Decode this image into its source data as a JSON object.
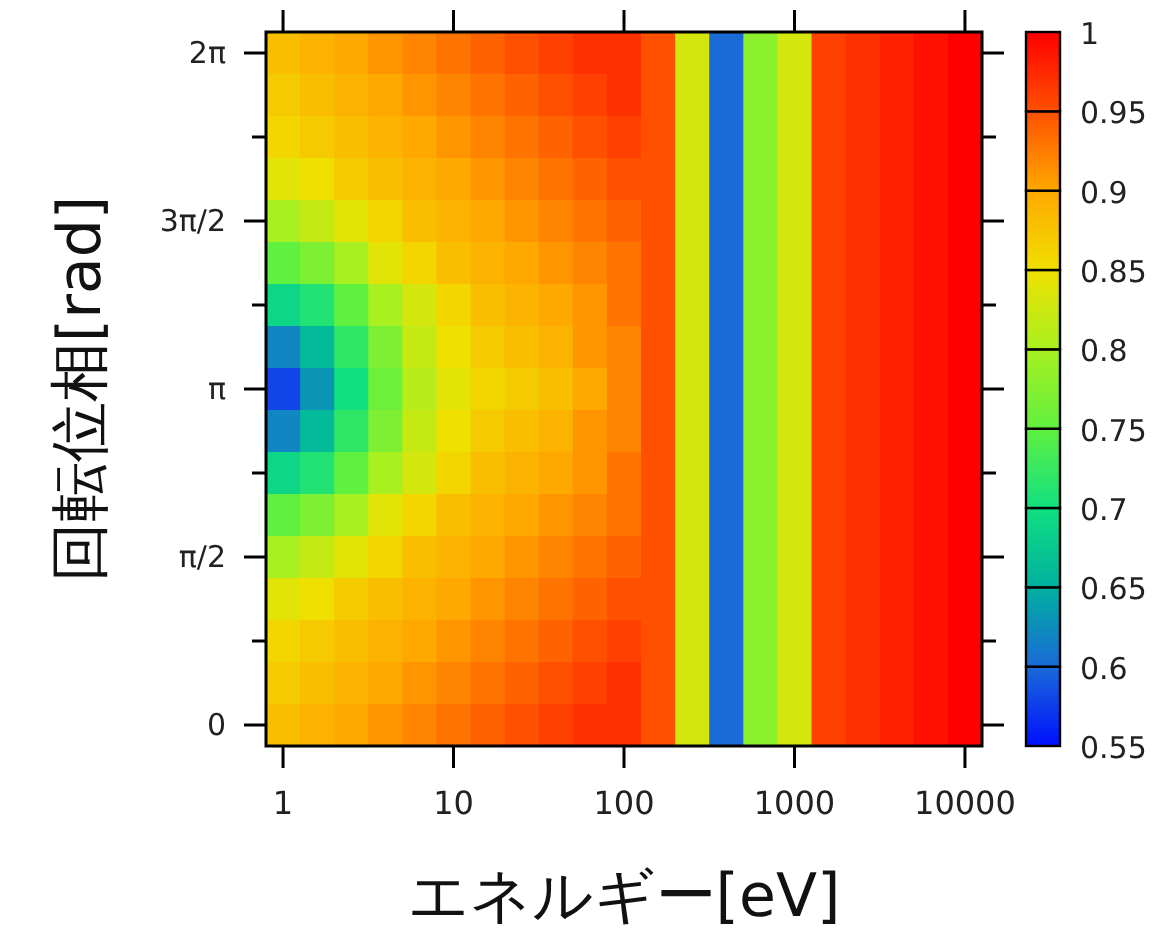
{
  "chart_data": {
    "type": "heatmap",
    "xlabel": "エネルギー[eV]",
    "ylabel": "回転位相[rad]",
    "categories": [
      "1",
      null,
      null,
      null,
      null,
      "10",
      null,
      null,
      null,
      null,
      "100",
      null,
      null,
      null,
      null,
      "1000",
      null,
      null,
      null,
      null,
      "10000"
    ],
    "y_categories": [
      "2π",
      null,
      null,
      null,
      "3π/2",
      null,
      null,
      null,
      "π",
      null,
      null,
      null,
      "π/2",
      null,
      null,
      null,
      "0"
    ],
    "clim": [
      0.55,
      1
    ],
    "cticks": [
      0.55,
      0.6,
      0.65,
      0.7,
      0.75,
      0.8,
      0.85,
      0.9,
      0.95,
      1
    ],
    "cells": [
      [
        0.88,
        0.89,
        0.9,
        0.91,
        0.92,
        0.93,
        0.94,
        0.95,
        0.96,
        0.97,
        0.97,
        0.95,
        0.83,
        0.6,
        0.78,
        0.83,
        0.96,
        0.97,
        0.98,
        0.99,
        1
      ],
      [
        0.87,
        0.88,
        0.89,
        0.9,
        0.91,
        0.92,
        0.93,
        0.94,
        0.95,
        0.96,
        0.97,
        0.95,
        0.83,
        0.6,
        0.78,
        0.83,
        0.96,
        0.97,
        0.98,
        0.99,
        1
      ],
      [
        0.86,
        0.87,
        0.88,
        0.89,
        0.9,
        0.91,
        0.92,
        0.93,
        0.94,
        0.95,
        0.96,
        0.95,
        0.83,
        0.6,
        0.78,
        0.83,
        0.96,
        0.97,
        0.98,
        0.99,
        1
      ],
      [
        0.84,
        0.85,
        0.87,
        0.88,
        0.89,
        0.9,
        0.91,
        0.92,
        0.93,
        0.94,
        0.95,
        0.95,
        0.83,
        0.6,
        0.78,
        0.83,
        0.96,
        0.97,
        0.98,
        0.99,
        1
      ],
      [
        0.8,
        0.82,
        0.84,
        0.86,
        0.88,
        0.89,
        0.9,
        0.91,
        0.92,
        0.93,
        0.94,
        0.95,
        0.83,
        0.6,
        0.78,
        0.83,
        0.96,
        0.97,
        0.98,
        0.99,
        1
      ],
      [
        0.75,
        0.77,
        0.8,
        0.84,
        0.86,
        0.88,
        0.89,
        0.9,
        0.91,
        0.92,
        0.93,
        0.95,
        0.83,
        0.6,
        0.78,
        0.83,
        0.96,
        0.97,
        0.98,
        0.99,
        1
      ],
      [
        0.69,
        0.71,
        0.75,
        0.8,
        0.83,
        0.86,
        0.88,
        0.89,
        0.9,
        0.91,
        0.93,
        0.95,
        0.83,
        0.6,
        0.78,
        0.83,
        0.96,
        0.97,
        0.98,
        0.99,
        1
      ],
      [
        0.62,
        0.66,
        0.72,
        0.77,
        0.82,
        0.85,
        0.87,
        0.88,
        0.89,
        0.91,
        0.92,
        0.95,
        0.83,
        0.6,
        0.78,
        0.83,
        0.96,
        0.97,
        0.98,
        0.99,
        1
      ],
      [
        0.58,
        0.63,
        0.7,
        0.76,
        0.81,
        0.84,
        0.86,
        0.87,
        0.88,
        0.9,
        0.92,
        0.95,
        0.83,
        0.6,
        0.78,
        0.83,
        0.96,
        0.97,
        0.98,
        0.99,
        1
      ],
      [
        0.62,
        0.66,
        0.72,
        0.77,
        0.82,
        0.85,
        0.87,
        0.88,
        0.89,
        0.91,
        0.92,
        0.95,
        0.83,
        0.6,
        0.78,
        0.83,
        0.96,
        0.97,
        0.98,
        0.99,
        1
      ],
      [
        0.69,
        0.71,
        0.75,
        0.8,
        0.83,
        0.86,
        0.88,
        0.89,
        0.9,
        0.91,
        0.93,
        0.95,
        0.83,
        0.6,
        0.78,
        0.83,
        0.96,
        0.97,
        0.98,
        0.99,
        1
      ],
      [
        0.75,
        0.77,
        0.8,
        0.84,
        0.86,
        0.88,
        0.89,
        0.9,
        0.91,
        0.92,
        0.93,
        0.95,
        0.83,
        0.6,
        0.78,
        0.83,
        0.96,
        0.97,
        0.98,
        0.99,
        1
      ],
      [
        0.8,
        0.82,
        0.84,
        0.86,
        0.88,
        0.89,
        0.9,
        0.91,
        0.92,
        0.93,
        0.94,
        0.95,
        0.83,
        0.6,
        0.78,
        0.83,
        0.96,
        0.97,
        0.98,
        0.99,
        1
      ],
      [
        0.84,
        0.85,
        0.87,
        0.88,
        0.89,
        0.9,
        0.91,
        0.92,
        0.93,
        0.94,
        0.95,
        0.95,
        0.83,
        0.6,
        0.78,
        0.83,
        0.96,
        0.97,
        0.98,
        0.99,
        1
      ],
      [
        0.86,
        0.87,
        0.88,
        0.89,
        0.9,
        0.91,
        0.92,
        0.93,
        0.94,
        0.95,
        0.96,
        0.95,
        0.83,
        0.6,
        0.78,
        0.83,
        0.96,
        0.97,
        0.98,
        0.99,
        1
      ],
      [
        0.87,
        0.88,
        0.89,
        0.9,
        0.91,
        0.92,
        0.93,
        0.94,
        0.95,
        0.96,
        0.97,
        0.95,
        0.83,
        0.6,
        0.78,
        0.83,
        0.96,
        0.97,
        0.98,
        0.99,
        1
      ],
      [
        0.88,
        0.89,
        0.9,
        0.91,
        0.92,
        0.93,
        0.94,
        0.95,
        0.96,
        0.97,
        0.97,
        0.95,
        0.83,
        0.6,
        0.78,
        0.83,
        0.96,
        0.97,
        0.98,
        0.99,
        1
      ]
    ]
  }
}
